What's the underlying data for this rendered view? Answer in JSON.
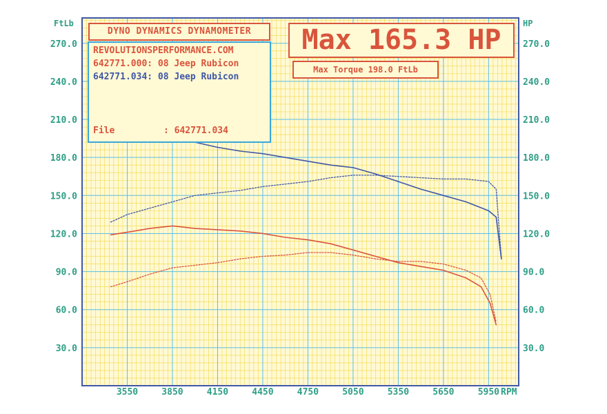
{
  "chart_data": {
    "type": "line",
    "title": "DYNO DYNAMICS DYNAMOMETER",
    "header": {
      "max_hp": "Max 165.3 HP",
      "max_torque": "Max Torque 198.0 FtLb"
    },
    "info": {
      "site": "REVOLUTIONSPERFORMANCE.COM",
      "run1": "642771.000: 08 Jeep Rubicon",
      "run2": "642771.034: 08 Jeep Rubicon",
      "file_label": "File",
      "file_value": ": 642771.034"
    },
    "xlabel": "RPM",
    "ylabel_left": "FtLb",
    "ylabel_right": "HP",
    "x_ticks": [
      "3550",
      "3850",
      "4150",
      "4450",
      "4750",
      "5050",
      "5350",
      "5650",
      "5950"
    ],
    "y_ticks": [
      "30.0",
      "60.0",
      "90.0",
      "120.0",
      "150.0",
      "180.0",
      "210.0",
      "240.0",
      "270.0"
    ],
    "xlim": [
      3250,
      6150
    ],
    "ylim": [
      0,
      290
    ],
    "grid": true,
    "colors": {
      "grid_major": "#5bc0e8",
      "grid_minor": "#f1d949",
      "background": "#fff9d4",
      "frame": "#3f57a6",
      "red_run": "#d9543c",
      "blue_run": "#3f57a6"
    },
    "series": [
      {
        "name": "642771.034: 08 Jeep Rubicon",
        "color": "blue",
        "style": "solid",
        "x": [
          3440,
          3550,
          3700,
          3850,
          4000,
          4150,
          4300,
          4450,
          4600,
          4750,
          4900,
          5050,
          5200,
          5350,
          5500,
          5650,
          5800,
          5950,
          6000,
          6035
        ],
        "y": [
          197,
          198,
          196,
          195,
          192,
          188,
          185,
          183,
          180,
          177,
          174,
          172,
          167,
          161,
          155,
          150,
          145,
          138,
          133,
          100
        ]
      },
      {
        "name": "642771.034: 08 Jeep Rubicon",
        "color": "blue",
        "style": "dotted",
        "x": [
          3440,
          3550,
          3700,
          3850,
          4000,
          4150,
          4300,
          4450,
          4600,
          4750,
          4900,
          5050,
          5200,
          5350,
          5500,
          5650,
          5800,
          5950,
          6000,
          6035
        ],
        "y": [
          129,
          135,
          140,
          145,
          150,
          152,
          154,
          157,
          159,
          161,
          164,
          166,
          166,
          165,
          164,
          163,
          163,
          161,
          155,
          100
        ]
      },
      {
        "name": "642771.000: 08 Jeep Rubicon",
        "color": "red",
        "style": "solid",
        "x": [
          3440,
          3550,
          3700,
          3850,
          4000,
          4150,
          4300,
          4450,
          4600,
          4750,
          4900,
          5050,
          5200,
          5350,
          5500,
          5650,
          5800,
          5900,
          5960,
          6000
        ],
        "y": [
          119,
          121,
          124,
          126,
          124,
          123,
          122,
          120,
          117,
          115,
          112,
          107,
          102,
          97,
          94,
          91,
          85,
          78,
          65,
          48
        ]
      },
      {
        "name": "642771.000: 08 Jeep Rubicon",
        "color": "red",
        "style": "dotted",
        "x": [
          3440,
          3550,
          3700,
          3850,
          4000,
          4150,
          4300,
          4450,
          4600,
          4750,
          4900,
          5050,
          5200,
          5350,
          5500,
          5650,
          5800,
          5900,
          5960,
          6000
        ],
        "y": [
          78,
          82,
          88,
          93,
          95,
          97,
          100,
          102,
          103,
          105,
          105,
          103,
          100,
          98,
          98,
          96,
          91,
          85,
          72,
          50
        ]
      }
    ]
  }
}
